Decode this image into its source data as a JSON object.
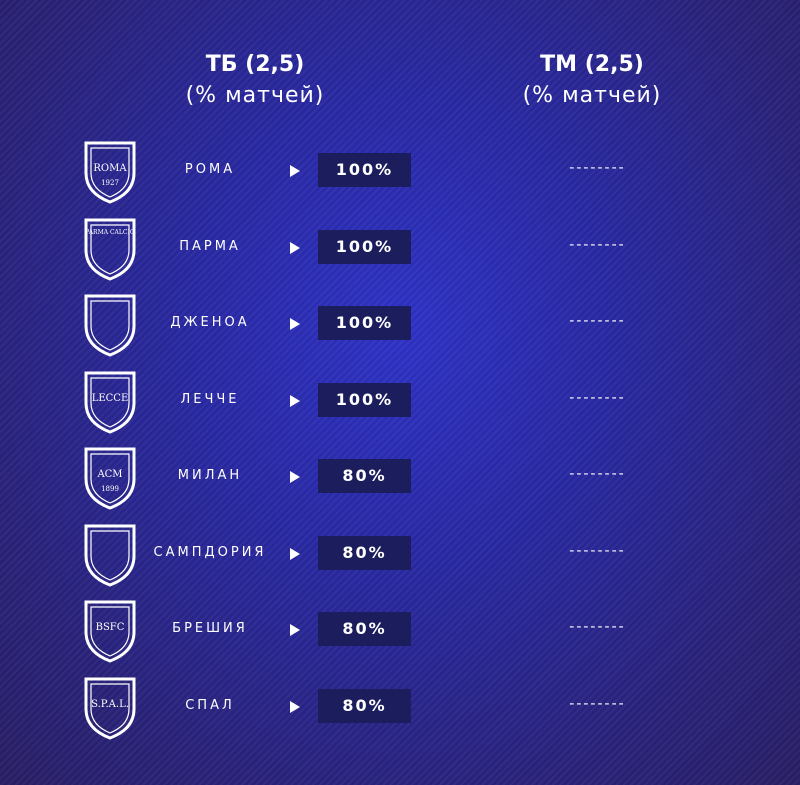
{
  "header": {
    "over": {
      "title": "ТБ (2,5)",
      "subtitle": "(% матчей)"
    },
    "under": {
      "title": "ТМ (2,5)",
      "subtitle": "(% матчей)"
    }
  },
  "rows": [
    {
      "team": "РОМА",
      "crest": "ROMA",
      "crest_year": "1927",
      "over": "100%",
      "under": "--------"
    },
    {
      "team": "ПАРМА",
      "crest": "PARMA CALCIO",
      "over": "100%",
      "under": "--------"
    },
    {
      "team": "ДЖЕНОА",
      "over": "100%",
      "under": "--------"
    },
    {
      "team": "ЛЕЧЧЕ",
      "crest": "LECCE",
      "over": "100%",
      "under": "--------"
    },
    {
      "team": "МИЛАН",
      "crest": "ACM",
      "crest_year": "1899",
      "over": "80%",
      "under": "--------"
    },
    {
      "team": "САМПДОРИЯ",
      "over": "80%",
      "under": "--------"
    },
    {
      "team": "БРЕШИЯ",
      "crest": "BSFC",
      "over": "80%",
      "under": "--------"
    },
    {
      "team": "СПАЛ",
      "crest": "S.P.A.L.",
      "over": "80%",
      "under": "--------"
    }
  ]
}
